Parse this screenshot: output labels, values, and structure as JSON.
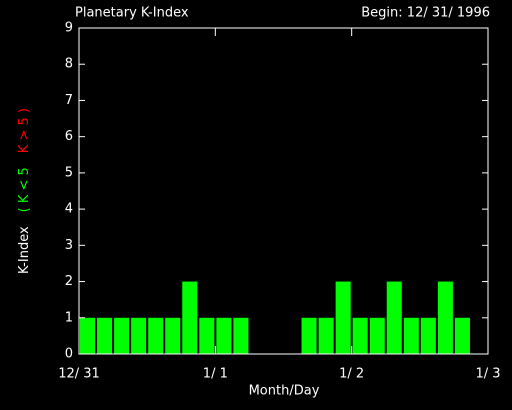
{
  "chart_data": {
    "type": "bar",
    "title": "Planetary K-Index",
    "subtitle": "Begin: 12/ 31/ 1996",
    "xlabel": "Month/Day",
    "ylabel_parts": [
      {
        "text": "K-Index",
        "color": "#ffffff"
      },
      {
        "text": "( K < 5",
        "color": "#00ff00"
      },
      {
        "text": "K > 5 )",
        "color": "#ff0000"
      }
    ],
    "color": "#00ff00",
    "x": [
      0,
      3,
      6,
      9,
      12,
      15,
      18,
      21,
      24,
      27,
      30,
      33,
      36,
      39,
      42,
      45,
      48,
      51,
      54,
      57,
      60,
      63,
      66,
      69
    ],
    "values": [
      1,
      1,
      1,
      1,
      1,
      1,
      2,
      1,
      1,
      1,
      null,
      null,
      null,
      1,
      1,
      2,
      1,
      1,
      2,
      1,
      1,
      2,
      1,
      null
    ],
    "xlim": [
      0,
      72
    ],
    "xticks": [
      {
        "value": 0,
        "label": "12/ 31"
      },
      {
        "value": 24,
        "label": "1/ 1"
      },
      {
        "value": 48,
        "label": "1/ 2"
      },
      {
        "value": 72,
        "label": "1/ 3"
      }
    ],
    "ylim": [
      0,
      9
    ],
    "yticks": [
      0,
      1,
      2,
      3,
      4,
      5,
      6,
      7,
      8,
      9
    ]
  }
}
